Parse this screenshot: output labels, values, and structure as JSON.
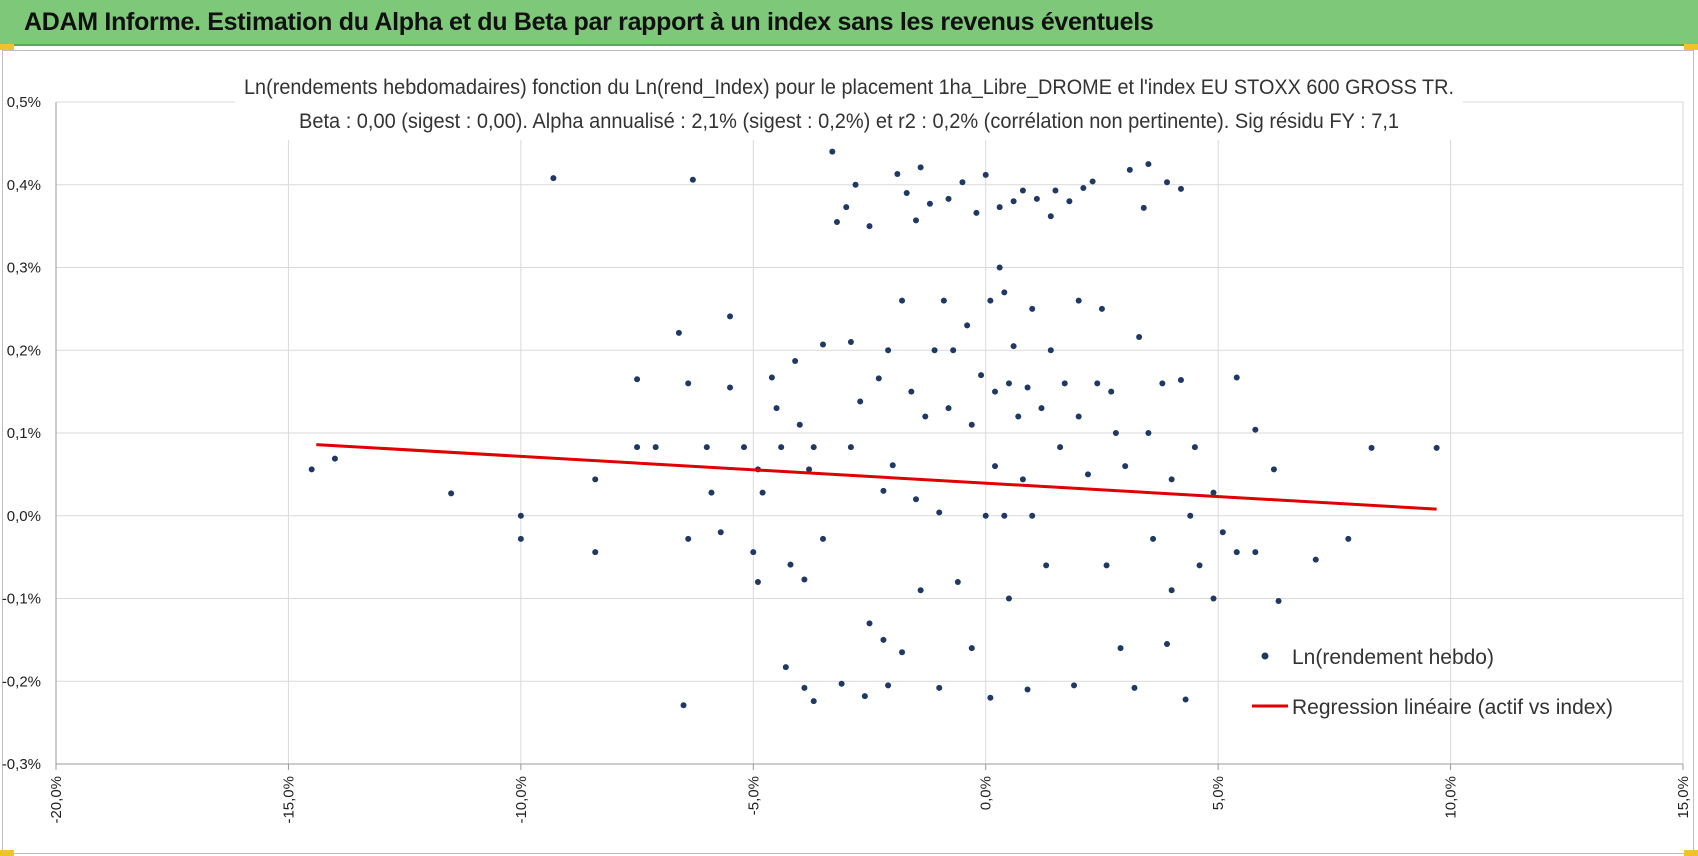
{
  "header": {
    "title": "ADAM Informe. Estimation du Alpha et du Beta par rapport à un index sans les revenus éventuels"
  },
  "colors": {
    "banner": "#7ec87a",
    "points": "#1f3864",
    "regression": "#e00000",
    "grid": "#d9d9d9"
  },
  "chart_data": {
    "type": "scatter",
    "title": "Ln(rendements hebdomadaires) fonction du Ln(rend_Index) pour le placement 1ha_Libre_DROME et l'index EU STOXX 600 GROSS TR.",
    "subtitle": "Beta : 0,00 (sigest : 0,00). Alpha annualisé : 2,1% (sigest : 0,2%) et r2 : 0,2% (corrélation non pertinente). Sig résidu FY : 7,1",
    "xlabel": "",
    "ylabel": "",
    "xlim": [
      -20,
      15
    ],
    "ylim": [
      -0.3,
      0.5
    ],
    "x_ticks": [
      {
        "value": -20,
        "label": "-20,0%"
      },
      {
        "value": -15,
        "label": "-15,0%"
      },
      {
        "value": -10,
        "label": "-10,0%"
      },
      {
        "value": -5,
        "label": "-5,0%"
      },
      {
        "value": 0,
        "label": "0,0%"
      },
      {
        "value": 5,
        "label": "5,0%"
      },
      {
        "value": 10,
        "label": "10,0%"
      },
      {
        "value": 15,
        "label": "15,0%"
      }
    ],
    "y_ticks": [
      {
        "value": -0.3,
        "label": "-0,3%"
      },
      {
        "value": -0.2,
        "label": "-0,2%"
      },
      {
        "value": -0.1,
        "label": "-0,1%"
      },
      {
        "value": 0.0,
        "label": "0,0%"
      },
      {
        "value": 0.1,
        "label": "0,1%"
      },
      {
        "value": 0.2,
        "label": "0,2%"
      },
      {
        "value": 0.3,
        "label": "0,3%"
      },
      {
        "value": 0.4,
        "label": "0,4%"
      },
      {
        "value": 0.5,
        "label": "0,5%"
      }
    ],
    "grid": true,
    "legend_position": "bottom-right",
    "series": [
      {
        "name": "Ln(rendement hebdo)",
        "kind": "scatter",
        "color": "#1f3864",
        "points": [
          [
            -14.5,
            0.056
          ],
          [
            -14.0,
            0.069
          ],
          [
            -11.5,
            0.027
          ],
          [
            -10.0,
            0.0
          ],
          [
            -10.0,
            -0.028
          ],
          [
            -9.3,
            0.408
          ],
          [
            -8.4,
            0.044
          ],
          [
            -8.4,
            -0.044
          ],
          [
            -7.5,
            0.165
          ],
          [
            -7.5,
            0.083
          ],
          [
            -7.1,
            0.083
          ],
          [
            -6.6,
            0.221
          ],
          [
            -6.5,
            -0.229
          ],
          [
            -6.3,
            0.406
          ],
          [
            -6.4,
            0.16
          ],
          [
            -6.4,
            -0.028
          ],
          [
            -6.0,
            0.083
          ],
          [
            -5.9,
            0.028
          ],
          [
            -5.7,
            -0.02
          ],
          [
            -5.5,
            0.241
          ],
          [
            -5.5,
            0.155
          ],
          [
            -5.2,
            0.083
          ],
          [
            -5.0,
            -0.044
          ],
          [
            -4.9,
            0.056
          ],
          [
            -4.9,
            -0.08
          ],
          [
            -4.8,
            0.028
          ],
          [
            -4.6,
            0.167
          ],
          [
            -4.5,
            0.13
          ],
          [
            -4.4,
            0.083
          ],
          [
            -4.2,
            -0.059
          ],
          [
            -4.3,
            -0.183
          ],
          [
            -4.1,
            0.187
          ],
          [
            -4.0,
            0.11
          ],
          [
            -3.9,
            -0.077
          ],
          [
            -3.9,
            -0.208
          ],
          [
            -3.8,
            0.056
          ],
          [
            -3.7,
            -0.224
          ],
          [
            -3.7,
            0.083
          ],
          [
            -3.5,
            0.207
          ],
          [
            -3.5,
            -0.028
          ],
          [
            -3.3,
            0.44
          ],
          [
            -3.2,
            0.355
          ],
          [
            -3.1,
            -0.203
          ],
          [
            -3.0,
            0.373
          ],
          [
            -2.9,
            0.21
          ],
          [
            -2.9,
            0.083
          ],
          [
            -2.8,
            0.4
          ],
          [
            -2.7,
            0.138
          ],
          [
            -2.6,
            -0.218
          ],
          [
            -2.5,
            0.35
          ],
          [
            -2.5,
            -0.13
          ],
          [
            -2.3,
            0.166
          ],
          [
            -2.2,
            0.03
          ],
          [
            -2.2,
            -0.15
          ],
          [
            -2.1,
            0.2
          ],
          [
            -2.1,
            -0.205
          ],
          [
            -2.0,
            0.061
          ],
          [
            -1.9,
            0.413
          ],
          [
            -1.8,
            0.26
          ],
          [
            -1.8,
            -0.165
          ],
          [
            -1.7,
            0.39
          ],
          [
            -1.6,
            0.15
          ],
          [
            -1.5,
            0.02
          ],
          [
            -1.5,
            0.357
          ],
          [
            -1.4,
            0.421
          ],
          [
            -1.4,
            -0.09
          ],
          [
            -1.3,
            0.12
          ],
          [
            -1.2,
            0.377
          ],
          [
            -1.1,
            0.2
          ],
          [
            -1.0,
            0.004
          ],
          [
            -1.0,
            -0.208
          ],
          [
            -0.9,
            0.26
          ],
          [
            -0.8,
            0.13
          ],
          [
            -0.8,
            0.383
          ],
          [
            -0.7,
            0.2
          ],
          [
            -0.6,
            -0.08
          ],
          [
            -0.5,
            0.403
          ],
          [
            -0.4,
            0.23
          ],
          [
            -0.3,
            0.11
          ],
          [
            -0.3,
            -0.16
          ],
          [
            -0.2,
            0.366
          ],
          [
            -0.1,
            0.17
          ],
          [
            0.0,
            0.0
          ],
          [
            0.0,
            0.412
          ],
          [
            0.1,
            0.26
          ],
          [
            0.1,
            -0.22
          ],
          [
            0.2,
            0.15
          ],
          [
            0.2,
            0.06
          ],
          [
            0.3,
            0.373
          ],
          [
            0.3,
            0.3
          ],
          [
            0.4,
            0.27
          ],
          [
            0.4,
            0.0
          ],
          [
            0.5,
            0.16
          ],
          [
            0.5,
            -0.1
          ],
          [
            0.6,
            0.38
          ],
          [
            0.6,
            0.205
          ],
          [
            0.7,
            0.12
          ],
          [
            0.8,
            0.044
          ],
          [
            0.8,
            0.393
          ],
          [
            0.9,
            0.155
          ],
          [
            0.9,
            -0.21
          ],
          [
            1.0,
            0.25
          ],
          [
            1.0,
            0.0
          ],
          [
            1.1,
            0.383
          ],
          [
            1.2,
            0.13
          ],
          [
            1.3,
            -0.06
          ],
          [
            1.4,
            0.362
          ],
          [
            1.4,
            0.2
          ],
          [
            1.5,
            0.393
          ],
          [
            1.6,
            0.083
          ],
          [
            1.7,
            0.16
          ],
          [
            1.8,
            0.38
          ],
          [
            1.9,
            -0.205
          ],
          [
            2.0,
            0.26
          ],
          [
            2.0,
            0.12
          ],
          [
            2.1,
            0.396
          ],
          [
            2.2,
            0.05
          ],
          [
            2.3,
            0.404
          ],
          [
            2.4,
            0.16
          ],
          [
            2.5,
            0.25
          ],
          [
            2.6,
            -0.06
          ],
          [
            2.7,
            0.15
          ],
          [
            2.8,
            0.1
          ],
          [
            2.9,
            -0.16
          ],
          [
            3.0,
            0.06
          ],
          [
            3.1,
            0.418
          ],
          [
            3.2,
            -0.208
          ],
          [
            3.3,
            0.216
          ],
          [
            3.4,
            0.372
          ],
          [
            3.5,
            0.425
          ],
          [
            3.5,
            0.1
          ],
          [
            3.6,
            -0.028
          ],
          [
            3.8,
            0.16
          ],
          [
            3.9,
            0.403
          ],
          [
            3.9,
            -0.155
          ],
          [
            4.0,
            0.044
          ],
          [
            4.0,
            -0.09
          ],
          [
            4.2,
            0.395
          ],
          [
            4.2,
            0.164
          ],
          [
            4.3,
            -0.222
          ],
          [
            4.4,
            0.0
          ],
          [
            4.5,
            0.083
          ],
          [
            4.6,
            -0.06
          ],
          [
            4.9,
            0.028
          ],
          [
            4.9,
            -0.1
          ],
          [
            5.1,
            -0.02
          ],
          [
            5.4,
            0.167
          ],
          [
            5.4,
            -0.044
          ],
          [
            5.8,
            0.104
          ],
          [
            5.8,
            -0.044
          ],
          [
            6.2,
            0.056
          ],
          [
            6.3,
            -0.103
          ],
          [
            7.1,
            -0.053
          ],
          [
            7.8,
            -0.028
          ],
          [
            8.3,
            0.082
          ],
          [
            9.7,
            0.082
          ]
        ]
      },
      {
        "name": "Regression linéaire (actif vs index)",
        "kind": "line",
        "color": "#e00000",
        "points": [
          [
            -14.4,
            0.086
          ],
          [
            9.7,
            0.008
          ]
        ]
      }
    ]
  }
}
